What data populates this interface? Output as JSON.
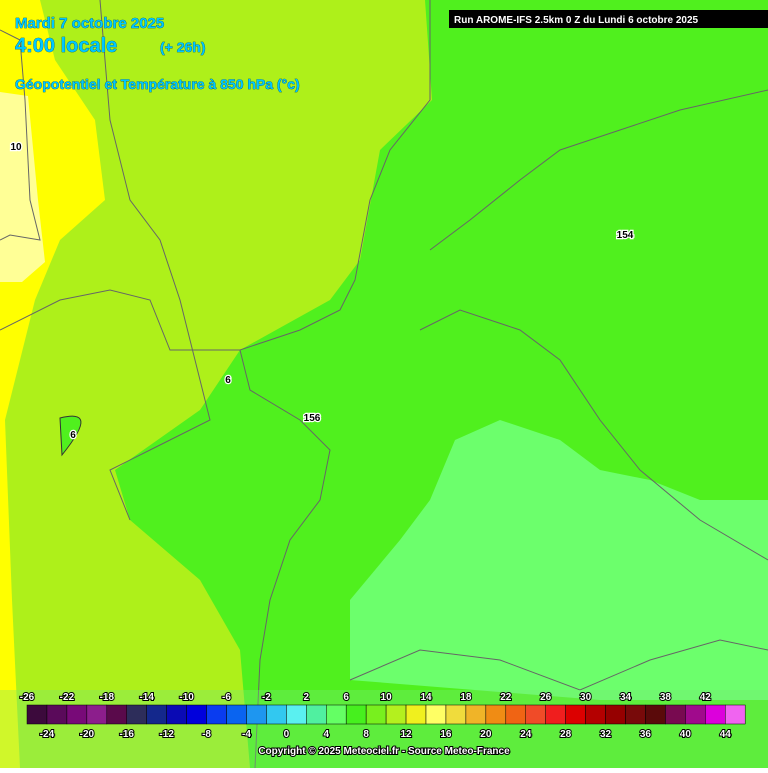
{
  "header": {
    "date": "Mardi 7 octobre 2025",
    "time": "4:00 locale",
    "lead": "(+ 26h)",
    "subtitle": "Géopotentiel et Température à 850 hPa (°c)",
    "run": "Run AROME-IFS 2.5km 0 Z du Lundi 6 octobre 2025"
  },
  "contour_labels": [
    10,
    154,
    6,
    156,
    6
  ],
  "colorbar": {
    "ticks_top": [
      -26,
      -22,
      -18,
      -14,
      -10,
      -6,
      -2,
      2,
      6,
      10,
      14,
      18,
      22,
      26,
      30,
      34,
      38,
      42
    ],
    "ticks_bottom": [
      -24,
      -20,
      -16,
      -12,
      -8,
      -4,
      0,
      4,
      8,
      12,
      16,
      20,
      24,
      28,
      32,
      36,
      40,
      44
    ],
    "colors": [
      "#3c0a3c",
      "#5a0a5a",
      "#780a78",
      "#8c1e8c",
      "#5a0a4b",
      "#2d2d5a",
      "#14288c",
      "#0a0ab4",
      "#0000dc",
      "#0a3cf0",
      "#0a64f0",
      "#1e96f0",
      "#32c8f0",
      "#5af0f0",
      "#50f0a0",
      "#64ff64",
      "#46f01e",
      "#78f01e",
      "#b4f01e",
      "#f0f01e",
      "#ffff64",
      "#f0dc3c",
      "#f0b428",
      "#f08c14",
      "#f06414",
      "#f04b28",
      "#f01e1e",
      "#dc0000",
      "#b40000",
      "#960000",
      "#780a0a",
      "#5a0a0a",
      "#780a50",
      "#a00a8c",
      "#dc00dc",
      "#f064f0"
    ]
  },
  "copyright": "Copyright © 2025 Meteociel.fr - Source Meteo-France"
}
